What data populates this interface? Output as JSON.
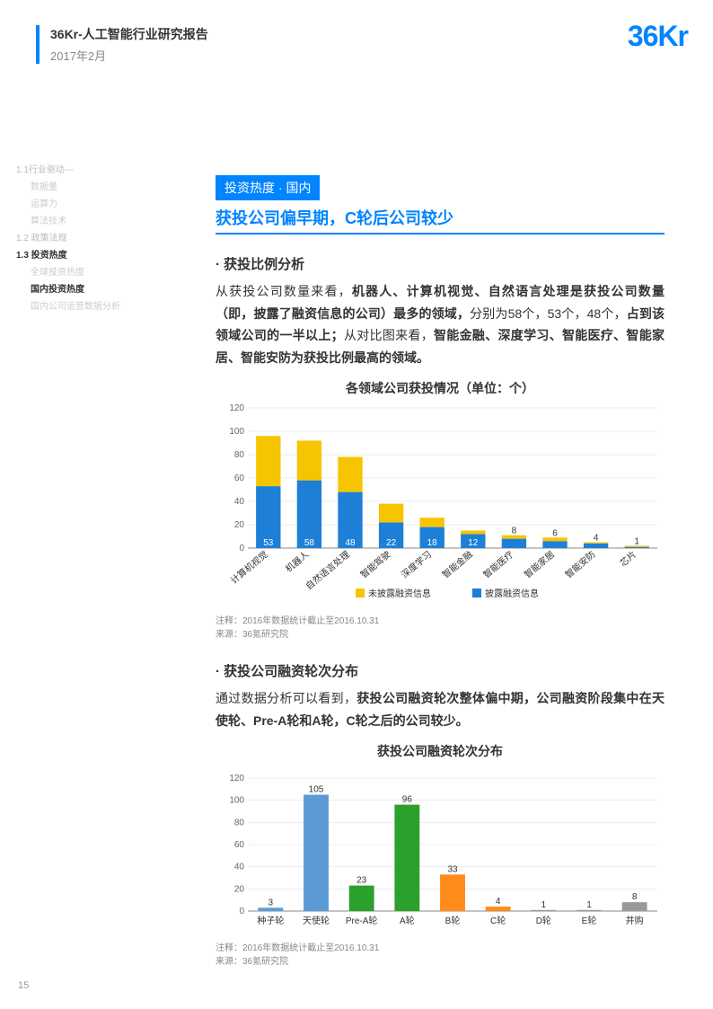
{
  "header": {
    "title": "36Kr-人工智能行业研究报告",
    "date": "2017年2月"
  },
  "logo": "36Kr",
  "sidebar": {
    "items": [
      {
        "label": "1.1行业驱动---",
        "cls": "l1"
      },
      {
        "label": "数据量",
        "cls": "l2"
      },
      {
        "label": "运算力",
        "cls": "l2"
      },
      {
        "label": "算法技术",
        "cls": "l2"
      },
      {
        "label": "1.2 政策法规",
        "cls": "l1"
      },
      {
        "label": "1.3 投资热度",
        "cls": "active1"
      },
      {
        "label": "全球投资热度",
        "cls": "l2"
      },
      {
        "label": "国内投资热度",
        "cls": "active2"
      },
      {
        "label": "国内公司运营数据分析",
        "cls": "l2"
      }
    ]
  },
  "tag": "投资热度 · 国内",
  "subtitle": "获投公司偏早期，C轮后公司较少",
  "section1": {
    "head": "· 获投比例分析",
    "p1a": "从获投公司数量来看，",
    "p1b": "机器人、计算机视觉、自然语言处理是获投公司数量（即，披露了融资信息的公司）最多的领域，",
    "p1c": "分别为58个，53个，48个，",
    "p1d": "占到该领域公司的一半以上；",
    "p1e": "从对比图来看，",
    "p1f": "智能金融、深度学习、智能医疗、智能家居、智能安防为获投比例最高的领域。"
  },
  "chart1": {
    "title": "各领域公司获投情况（单位：个）",
    "ymax": 120,
    "ystep": 20,
    "categories": [
      "计算机视觉",
      "机器人",
      "自然语言处理",
      "智能驾驶",
      "深度学习",
      "智能金融",
      "智能医疗",
      "智能家居",
      "智能安防",
      "芯片"
    ],
    "blue": [
      53,
      58,
      48,
      22,
      18,
      12,
      8,
      6,
      4,
      1
    ],
    "yellow": [
      43,
      34,
      30,
      16,
      8,
      3,
      3,
      3,
      1,
      1
    ],
    "blue_color": "#1e7fd6",
    "yellow_color": "#f6c500",
    "legend": [
      "未披露融资信息",
      "披露融资信息"
    ],
    "note1": "注释：2016年数据统计截止至2016.10.31",
    "note2": "来源：36氪研究院"
  },
  "section2": {
    "head": "· 获投公司融资轮次分布",
    "p1a": "通过数据分析可以看到，",
    "p1b": "获投公司融资轮次整体偏中期，公司融资阶段集中在天使轮、Pre-A轮和A轮，C轮之后的公司较少。"
  },
  "chart2": {
    "title": "获投公司融资轮次分布",
    "ymax": 120,
    "ystep": 20,
    "categories": [
      "种子轮",
      "天使轮",
      "Pre-A轮",
      "A轮",
      "B轮",
      "C轮",
      "D轮",
      "E轮",
      "并购"
    ],
    "values": [
      3,
      105,
      23,
      96,
      33,
      4,
      1,
      1,
      8
    ],
    "colors": [
      "#5b9bd5",
      "#5b9bd5",
      "#2ca02c",
      "#2ca02c",
      "#ff8c1a",
      "#ff8c1a",
      "#999999",
      "#999999",
      "#999999"
    ],
    "note1": "注释：2016年数据统计截止至2016.10.31",
    "note2": "来源：36氪研究院"
  },
  "page": "15"
}
